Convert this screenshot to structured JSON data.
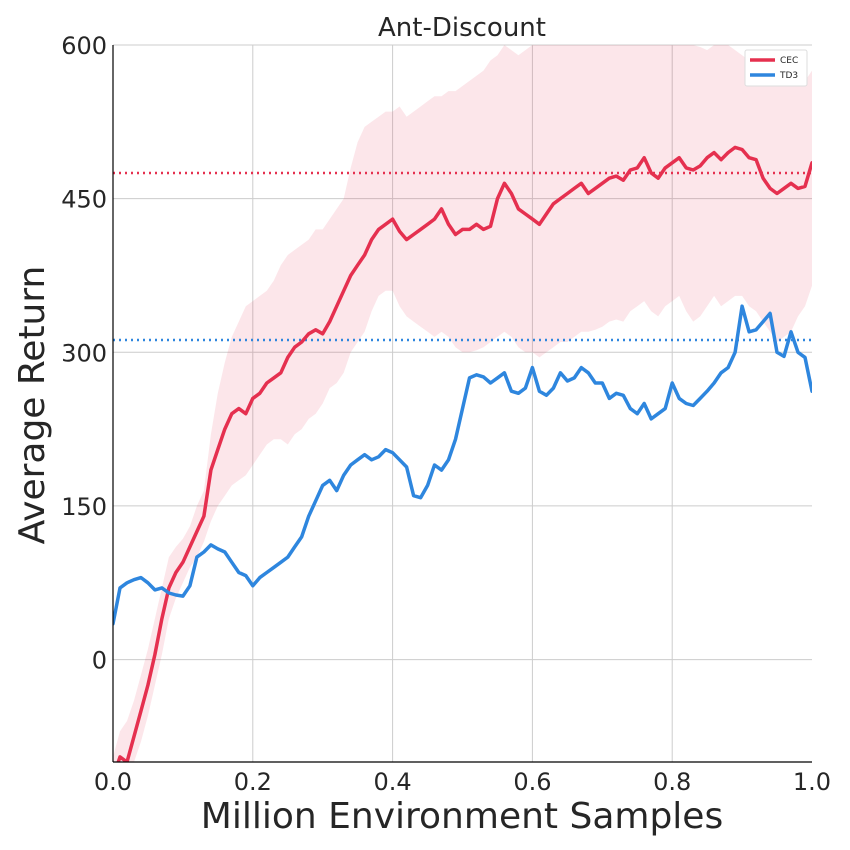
{
  "chart_data": {
    "type": "line",
    "title": "Ant-Discount",
    "xlabel": "Million Environment Samples",
    "ylabel": "Average Return",
    "xlim": [
      0.0,
      1.0
    ],
    "ylim": [
      -100,
      600
    ],
    "xticks": [
      0.0,
      0.2,
      0.4,
      0.6,
      0.8,
      1.0
    ],
    "xtick_labels": [
      "0.0",
      "0.2",
      "0.4",
      "0.6",
      "0.8",
      "1.0"
    ],
    "yticks": [
      0,
      150,
      300,
      450,
      600
    ],
    "ytick_labels": [
      "0",
      "150",
      "300",
      "450",
      "600"
    ],
    "grid": true,
    "legend_position": "top-right",
    "series": [
      {
        "name": "CEC",
        "color": "#e5304f",
        "x": [
          0.0,
          0.01,
          0.02,
          0.03,
          0.04,
          0.05,
          0.06,
          0.07,
          0.08,
          0.09,
          0.1,
          0.11,
          0.12,
          0.13,
          0.14,
          0.15,
          0.16,
          0.17,
          0.18,
          0.19,
          0.2,
          0.21,
          0.22,
          0.23,
          0.24,
          0.25,
          0.26,
          0.27,
          0.28,
          0.29,
          0.3,
          0.31,
          0.32,
          0.33,
          0.34,
          0.35,
          0.36,
          0.37,
          0.38,
          0.39,
          0.4,
          0.41,
          0.42,
          0.43,
          0.44,
          0.45,
          0.46,
          0.47,
          0.48,
          0.49,
          0.5,
          0.51,
          0.52,
          0.53,
          0.54,
          0.55,
          0.56,
          0.57,
          0.58,
          0.59,
          0.6,
          0.61,
          0.62,
          0.63,
          0.64,
          0.65,
          0.66,
          0.67,
          0.68,
          0.69,
          0.7,
          0.71,
          0.72,
          0.73,
          0.74,
          0.75,
          0.76,
          0.77,
          0.78,
          0.79,
          0.8,
          0.81,
          0.82,
          0.83,
          0.84,
          0.85,
          0.86,
          0.87,
          0.88,
          0.89,
          0.9,
          0.91,
          0.92,
          0.93,
          0.94,
          0.95,
          0.96,
          0.97,
          0.98,
          0.99,
          1.0
        ],
        "y": [
          -115,
          -95,
          -100,
          -75,
          -50,
          -25,
          5,
          40,
          70,
          85,
          95,
          110,
          125,
          140,
          185,
          205,
          225,
          240,
          245,
          240,
          255,
          260,
          270,
          275,
          280,
          295,
          305,
          310,
          318,
          322,
          318,
          330,
          345,
          360,
          375,
          385,
          395,
          410,
          420,
          425,
          430,
          418,
          410,
          415,
          420,
          425,
          430,
          440,
          425,
          415,
          420,
          420,
          425,
          420,
          423,
          450,
          465,
          455,
          440,
          435,
          430,
          425,
          435,
          445,
          450,
          455,
          460,
          465,
          455,
          460,
          465,
          470,
          472,
          468,
          478,
          480,
          490,
          475,
          470,
          480,
          485,
          490,
          480,
          478,
          482,
          490,
          495,
          488,
          495,
          500,
          498,
          490,
          488,
          470,
          460,
          455,
          460,
          465,
          460,
          462,
          485
        ],
        "band_upper": [
          -95,
          -70,
          -60,
          -40,
          -15,
          10,
          40,
          70,
          100,
          110,
          118,
          130,
          150,
          165,
          220,
          260,
          290,
          315,
          330,
          345,
          350,
          355,
          360,
          370,
          385,
          395,
          400,
          405,
          410,
          420,
          420,
          430,
          440,
          450,
          480,
          505,
          520,
          525,
          530,
          535,
          535,
          540,
          530,
          535,
          540,
          545,
          550,
          550,
          555,
          555,
          560,
          565,
          570,
          575,
          585,
          590,
          600,
          595,
          590,
          595,
          600,
          605,
          610,
          612,
          615,
          618,
          620,
          610,
          608,
          612,
          615,
          620,
          622,
          625,
          625,
          620,
          618,
          615,
          612,
          610,
          615,
          618,
          610,
          600,
          598,
          595,
          600,
          605,
          600,
          595,
          590,
          585,
          580,
          575,
          570,
          565,
          570,
          575,
          570,
          565,
          575
        ],
        "band_lower": [
          -125,
          -115,
          -120,
          -100,
          -80,
          -55,
          -25,
          5,
          40,
          60,
          75,
          90,
          100,
          115,
          135,
          150,
          160,
          170,
          175,
          180,
          190,
          200,
          210,
          215,
          215,
          210,
          220,
          225,
          235,
          240,
          250,
          265,
          270,
          280,
          300,
          310,
          320,
          340,
          355,
          360,
          360,
          345,
          335,
          330,
          325,
          320,
          315,
          320,
          315,
          305,
          300,
          300,
          302,
          305,
          310,
          315,
          320,
          315,
          305,
          300,
          300,
          295,
          300,
          305,
          310,
          310,
          315,
          320,
          320,
          322,
          325,
          330,
          332,
          330,
          340,
          345,
          350,
          340,
          335,
          345,
          350,
          355,
          340,
          330,
          335,
          345,
          355,
          345,
          350,
          355,
          355,
          345,
          340,
          330,
          320,
          310,
          315,
          320,
          335,
          345,
          365
        ]
      },
      {
        "name": "TD3",
        "color": "#2e86de",
        "x": [
          0.0,
          0.01,
          0.02,
          0.03,
          0.04,
          0.05,
          0.06,
          0.07,
          0.08,
          0.09,
          0.1,
          0.11,
          0.12,
          0.13,
          0.14,
          0.15,
          0.16,
          0.17,
          0.18,
          0.19,
          0.2,
          0.21,
          0.22,
          0.23,
          0.24,
          0.25,
          0.26,
          0.27,
          0.28,
          0.29,
          0.3,
          0.31,
          0.32,
          0.33,
          0.34,
          0.35,
          0.36,
          0.37,
          0.38,
          0.39,
          0.4,
          0.41,
          0.42,
          0.43,
          0.44,
          0.45,
          0.46,
          0.47,
          0.48,
          0.49,
          0.5,
          0.51,
          0.52,
          0.53,
          0.54,
          0.55,
          0.56,
          0.57,
          0.58,
          0.59,
          0.6,
          0.61,
          0.62,
          0.63,
          0.64,
          0.65,
          0.66,
          0.67,
          0.68,
          0.69,
          0.7,
          0.71,
          0.72,
          0.73,
          0.74,
          0.75,
          0.76,
          0.77,
          0.78,
          0.79,
          0.8,
          0.81,
          0.82,
          0.83,
          0.84,
          0.85,
          0.86,
          0.87,
          0.88,
          0.89,
          0.9,
          0.91,
          0.92,
          0.93,
          0.94,
          0.95,
          0.96,
          0.97,
          0.98,
          0.99,
          1.0
        ],
        "y": [
          35,
          70,
          75,
          78,
          80,
          75,
          68,
          70,
          65,
          63,
          62,
          72,
          100,
          105,
          112,
          108,
          105,
          95,
          85,
          82,
          72,
          80,
          85,
          90,
          95,
          100,
          110,
          120,
          140,
          155,
          170,
          175,
          165,
          180,
          190,
          195,
          200,
          195,
          198,
          205,
          202,
          195,
          188,
          160,
          158,
          170,
          190,
          185,
          195,
          215,
          245,
          275,
          278,
          276,
          270,
          275,
          280,
          262,
          260,
          265,
          285,
          262,
          258,
          265,
          280,
          272,
          275,
          285,
          280,
          270,
          270,
          255,
          260,
          258,
          245,
          240,
          250,
          235,
          240,
          245,
          270,
          255,
          250,
          248,
          255,
          262,
          270,
          280,
          285,
          300,
          345,
          320,
          322,
          330,
          338,
          300,
          296,
          320,
          300,
          295,
          262
        ]
      }
    ],
    "reference_lines": [
      {
        "name": "CEC",
        "y": 475,
        "color": "#e5304f",
        "style": "dotted"
      },
      {
        "name": "TD3",
        "y": 312,
        "color": "#2e86de",
        "style": "dotted"
      }
    ]
  }
}
